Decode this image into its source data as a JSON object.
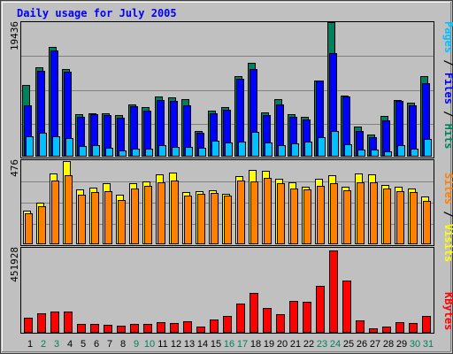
{
  "colors": {
    "background": "#c0c0c0",
    "plot_bg": "#c0c0c0",
    "hits": "#00805c",
    "files": "#0000ff",
    "pages": "#00c0ff",
    "visits": "#ffff00",
    "sites": "#ff8000",
    "kbytes": "#ff0000",
    "weekend_label": "#00805c",
    "weekday_label": "#000000",
    "title": "#0000ff"
  },
  "chart_data": [
    {
      "type": "bar",
      "title": "Daily usage for July 2005",
      "panel": "hits-files-pages",
      "y_max_label": "19436",
      "ylim": [
        0,
        19436
      ],
      "grid": true,
      "legend_right": [
        {
          "text": "Pages",
          "color": "#00c0ff"
        },
        {
          "text": " / ",
          "color": "#000000"
        },
        {
          "text": "Files",
          "color": "#0000ff"
        },
        {
          "text": " / ",
          "color": "#000000"
        },
        {
          "text": "Hits",
          "color": "#00805c"
        }
      ],
      "categories": [
        "1",
        "2",
        "3",
        "4",
        "5",
        "6",
        "7",
        "8",
        "9",
        "10",
        "11",
        "12",
        "13",
        "14",
        "15",
        "16",
        "17",
        "18",
        "19",
        "20",
        "21",
        "22",
        "23",
        "24",
        "25",
        "26",
        "27",
        "28",
        "29",
        "30",
        "31"
      ],
      "series": [
        {
          "name": "Hits",
          "values": [
            10300,
            12900,
            15800,
            12700,
            6100,
            6300,
            6300,
            6000,
            7600,
            7200,
            8700,
            8600,
            8300,
            3700,
            6600,
            7100,
            11600,
            13600,
            6400,
            8300,
            6100,
            5800,
            11000,
            19400,
            8800,
            4300,
            3200,
            5900,
            8200,
            7800,
            11600
          ]
        },
        {
          "name": "Files",
          "values": [
            7400,
            12400,
            15300,
            12300,
            5800,
            6100,
            6000,
            5600,
            7300,
            6700,
            8200,
            8000,
            7400,
            3400,
            6300,
            6800,
            11200,
            12700,
            6000,
            7500,
            5800,
            5400,
            11000,
            15000,
            8700,
            3700,
            2800,
            5300,
            8000,
            7400,
            10600
          ]
        },
        {
          "name": "Pages",
          "values": [
            3000,
            3500,
            3000,
            2700,
            1500,
            1600,
            1300,
            900,
            1200,
            1200,
            1600,
            1400,
            1400,
            1300,
            2300,
            2000,
            2200,
            3600,
            2100,
            1600,
            1900,
            2200,
            2800,
            3700,
            1800,
            1000,
            1000,
            800,
            1600,
            1100,
            2500
          ]
        }
      ]
    },
    {
      "type": "bar",
      "panel": "visits-sites",
      "y_max_label": "476",
      "ylim": [
        0,
        476
      ],
      "grid": true,
      "legend_right": [
        {
          "text": "Sites",
          "color": "#ff8000"
        },
        {
          "text": " / ",
          "color": "#000000"
        },
        {
          "text": "Visits",
          "color": "#ffff00"
        }
      ],
      "categories": [
        "1",
        "2",
        "3",
        "4",
        "5",
        "6",
        "7",
        "8",
        "9",
        "10",
        "11",
        "12",
        "13",
        "14",
        "15",
        "16",
        "17",
        "18",
        "19",
        "20",
        "21",
        "22",
        "23",
        "24",
        "25",
        "26",
        "27",
        "28",
        "29",
        "30",
        "31"
      ],
      "series": [
        {
          "name": "Visits",
          "values": [
            191,
            236,
            405,
            476,
            314,
            324,
            347,
            282,
            347,
            360,
            402,
            412,
            300,
            304,
            310,
            290,
            389,
            425,
            422,
            377,
            356,
            330,
            374,
            396,
            330,
            403,
            399,
            341,
            331,
            317,
            272
          ]
        },
        {
          "name": "Sites",
          "values": [
            178,
            220,
            367,
            397,
            286,
            300,
            302,
            255,
            317,
            334,
            354,
            365,
            281,
            287,
            294,
            278,
            363,
            358,
            379,
            349,
            321,
            313,
            335,
            350,
            307,
            356,
            356,
            318,
            305,
            299,
            249
          ]
        }
      ]
    },
    {
      "type": "bar",
      "panel": "kbytes",
      "y_max_label": "451928",
      "ylim": [
        0,
        451928
      ],
      "grid": false,
      "legend_right": [
        {
          "text": "KBytes",
          "color": "#ff0000"
        }
      ],
      "categories": [
        "1",
        "2",
        "3",
        "4",
        "5",
        "6",
        "7",
        "8",
        "9",
        "10",
        "11",
        "12",
        "13",
        "14",
        "15",
        "16",
        "17",
        "18",
        "19",
        "20",
        "21",
        "22",
        "23",
        "24",
        "25",
        "26",
        "27",
        "28",
        "29",
        "30",
        "31"
      ],
      "series": [
        {
          "name": "KBytes",
          "values": [
            85000,
            105000,
            116000,
            116000,
            47000,
            50000,
            44000,
            39000,
            51000,
            48000,
            58000,
            55000,
            64000,
            35000,
            75000,
            92000,
            158000,
            220000,
            137000,
            102000,
            173000,
            170000,
            257000,
            451928,
            288000,
            69000,
            26000,
            32000,
            56000,
            54000,
            93000
          ]
        }
      ]
    }
  ],
  "x_labels": [
    {
      "text": "1",
      "weekend": false
    },
    {
      "text": "2",
      "weekend": true
    },
    {
      "text": "3",
      "weekend": true
    },
    {
      "text": "4",
      "weekend": false
    },
    {
      "text": "5",
      "weekend": false
    },
    {
      "text": "6",
      "weekend": false
    },
    {
      "text": "7",
      "weekend": false
    },
    {
      "text": "8",
      "weekend": false
    },
    {
      "text": "9",
      "weekend": true
    },
    {
      "text": "10",
      "weekend": true
    },
    {
      "text": "11",
      "weekend": false
    },
    {
      "text": "12",
      "weekend": false
    },
    {
      "text": "13",
      "weekend": false
    },
    {
      "text": "14",
      "weekend": false
    },
    {
      "text": "15",
      "weekend": false
    },
    {
      "text": "16",
      "weekend": true
    },
    {
      "text": "17",
      "weekend": true
    },
    {
      "text": "18",
      "weekend": false
    },
    {
      "text": "19",
      "weekend": false
    },
    {
      "text": "20",
      "weekend": false
    },
    {
      "text": "21",
      "weekend": false
    },
    {
      "text": "22",
      "weekend": false
    },
    {
      "text": "23",
      "weekend": true
    },
    {
      "text": "24",
      "weekend": true
    },
    {
      "text": "25",
      "weekend": false
    },
    {
      "text": "26",
      "weekend": false
    },
    {
      "text": "27",
      "weekend": false
    },
    {
      "text": "28",
      "weekend": false
    },
    {
      "text": "29",
      "weekend": false
    },
    {
      "text": "30",
      "weekend": true
    },
    {
      "text": "31",
      "weekend": true
    }
  ]
}
